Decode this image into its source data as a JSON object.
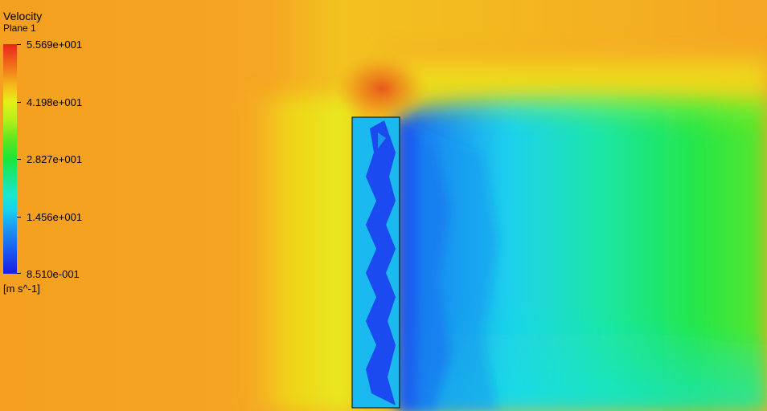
{
  "legend": {
    "title": "Velocity",
    "subtitle": "Plane 1",
    "unit": "[m s^-1]",
    "ticks": [
      "5.569e+001",
      "4.198e+001",
      "2.827e+001",
      "1.456e+001",
      "8.510e-001"
    ],
    "scale_colors": [
      "#e8251a",
      "#f5b81a",
      "#e6f016",
      "#1ae637",
      "#1ae6d2",
      "#1a9af0",
      "#1a1ae6"
    ]
  },
  "field": {
    "background_color": "#f5a623",
    "outline_color": "#000000"
  }
}
